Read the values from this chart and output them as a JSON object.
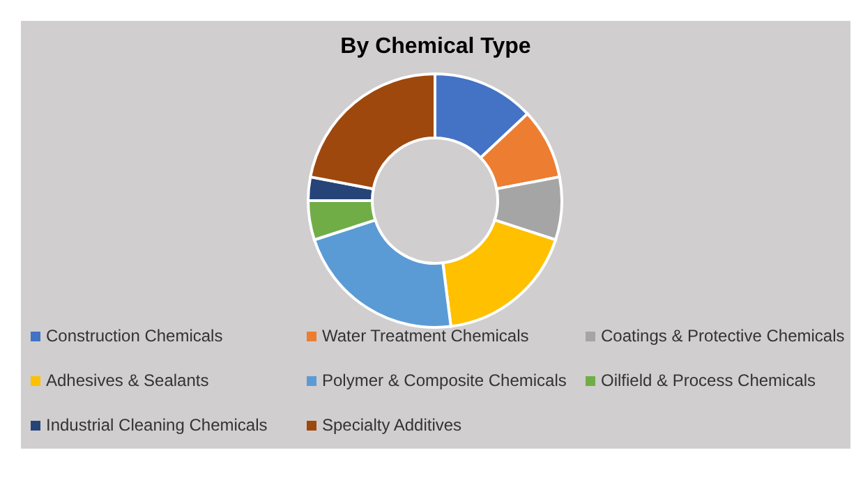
{
  "chart_data": {
    "type": "donut",
    "title": "By Chemical Type",
    "categories": [
      "Construction Chemicals",
      "Water Treatment Chemicals",
      "Coatings & Protective Chemicals",
      "Adhesives & Sealants",
      "Polymer & Composite Chemicals",
      "Oilfield & Process Chemicals",
      "Industrial Cleaning Chemicals",
      "Specialty Additives"
    ],
    "values": [
      13,
      9,
      8,
      18,
      22,
      5,
      3,
      22
    ],
    "colors": [
      "#4472c4",
      "#ed7d31",
      "#a5a5a5",
      "#ffc000",
      "#5b9bd5",
      "#70ad47",
      "#264478",
      "#9e480e"
    ],
    "legend": "bottom"
  }
}
